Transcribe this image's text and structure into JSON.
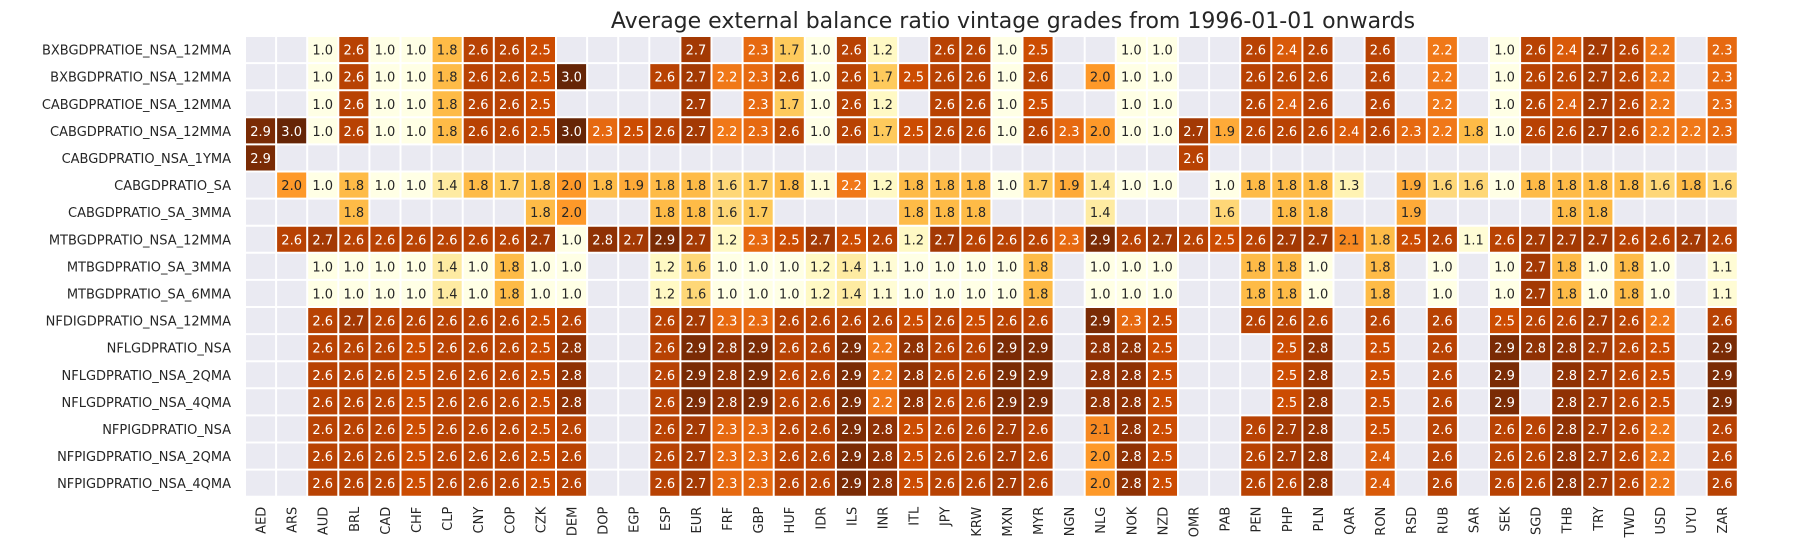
{
  "chart_data": {
    "type": "heatmap",
    "title": "Average external balance ratio vintage grades from 1996-01-01 onwards",
    "colormap": "YlOrBr",
    "vmin": 1.0,
    "vmax": 3.0,
    "background_color": "#eaeaf2",
    "columns": [
      "AED",
      "ARS",
      "AUD",
      "BRL",
      "CAD",
      "CHF",
      "CLP",
      "CNY",
      "COP",
      "CZK",
      "DEM",
      "DOP",
      "EGP",
      "ESP",
      "EUR",
      "FRF",
      "GBP",
      "HUF",
      "IDR",
      "ILS",
      "INR",
      "ITL",
      "JPY",
      "KRW",
      "MXN",
      "MYR",
      "NGN",
      "NLG",
      "NOK",
      "NZD",
      "OMR",
      "PAB",
      "PEN",
      "PHP",
      "PLN",
      "QAR",
      "RON",
      "RSD",
      "RUB",
      "SAR",
      "SEK",
      "SGD",
      "THB",
      "TRY",
      "TWD",
      "USD",
      "UYU",
      "ZAR"
    ],
    "rows": [
      "BXBGDPRATIOE_NSA_12MMA",
      "BXBGDPRATIO_NSA_12MMA",
      "CABGDPRATIOE_NSA_12MMA",
      "CABGDPRATIO_NSA_12MMA",
      "CABGDPRATIO_NSA_1YMA",
      "CABGDPRATIO_SA",
      "CABGDPRATIO_SA_3MMA",
      "MTBGDPRATIO_NSA_12MMA",
      "MTBGDPRATIO_SA_3MMA",
      "MTBGDPRATIO_SA_6MMA",
      "NFDIGDPRATIO_NSA_12MMA",
      "NFLGDPRATIO_NSA",
      "NFLGDPRATIO_NSA_2QMA",
      "NFLGDPRATIO_NSA_4QMA",
      "NFPIGDPRATIO_NSA",
      "NFPIGDPRATIO_NSA_2QMA",
      "NFPIGDPRATIO_NSA_4QMA"
    ],
    "values": [
      [
        null,
        null,
        1.0,
        2.6,
        1.0,
        1.0,
        1.8,
        2.6,
        2.6,
        2.5,
        null,
        null,
        null,
        null,
        2.7,
        null,
        2.3,
        1.7,
        1.0,
        2.6,
        1.2,
        null,
        2.6,
        2.6,
        1.0,
        2.5,
        null,
        null,
        1.0,
        1.0,
        null,
        null,
        2.6,
        2.4,
        2.6,
        null,
        2.6,
        null,
        2.2,
        null,
        1.0,
        2.6,
        2.4,
        2.7,
        2.6,
        2.2,
        null,
        2.3
      ],
      [
        null,
        null,
        1.0,
        2.6,
        1.0,
        1.0,
        1.8,
        2.6,
        2.6,
        2.5,
        3.0,
        null,
        null,
        2.6,
        2.7,
        2.2,
        2.3,
        2.6,
        1.0,
        2.6,
        1.7,
        2.5,
        2.6,
        2.6,
        1.0,
        2.6,
        null,
        2.0,
        1.0,
        1.0,
        null,
        null,
        2.6,
        2.6,
        2.6,
        null,
        2.6,
        null,
        2.2,
        null,
        1.0,
        2.6,
        2.6,
        2.7,
        2.6,
        2.2,
        null,
        2.3
      ],
      [
        null,
        null,
        1.0,
        2.6,
        1.0,
        1.0,
        1.8,
        2.6,
        2.6,
        2.5,
        null,
        null,
        null,
        null,
        2.7,
        null,
        2.3,
        1.7,
        1.0,
        2.6,
        1.2,
        null,
        2.6,
        2.6,
        1.0,
        2.5,
        null,
        null,
        1.0,
        1.0,
        null,
        null,
        2.6,
        2.4,
        2.6,
        null,
        2.6,
        null,
        2.2,
        null,
        1.0,
        2.6,
        2.4,
        2.7,
        2.6,
        2.2,
        null,
        2.3
      ],
      [
        2.9,
        3.0,
        1.0,
        2.6,
        1.0,
        1.0,
        1.8,
        2.6,
        2.6,
        2.5,
        3.0,
        2.3,
        2.5,
        2.6,
        2.7,
        2.2,
        2.3,
        2.6,
        1.0,
        2.6,
        1.7,
        2.5,
        2.6,
        2.6,
        1.0,
        2.6,
        2.3,
        2.0,
        1.0,
        1.0,
        2.7,
        1.9,
        2.6,
        2.6,
        2.6,
        2.4,
        2.6,
        2.3,
        2.2,
        1.8,
        1.0,
        2.6,
        2.6,
        2.7,
        2.6,
        2.2,
        2.2,
        2.3
      ],
      [
        2.9,
        null,
        null,
        null,
        null,
        null,
        null,
        null,
        null,
        null,
        null,
        null,
        null,
        null,
        null,
        null,
        null,
        null,
        null,
        null,
        null,
        null,
        null,
        null,
        null,
        null,
        null,
        null,
        null,
        null,
        2.6,
        null,
        null,
        null,
        null,
        null,
        null,
        null,
        null,
        null,
        null,
        null,
        null,
        null,
        null,
        null,
        null,
        null
      ],
      [
        null,
        2.0,
        1.0,
        1.8,
        1.0,
        1.0,
        1.4,
        1.8,
        1.7,
        1.8,
        2.0,
        1.8,
        1.9,
        1.8,
        1.8,
        1.6,
        1.7,
        1.8,
        1.1,
        2.2,
        1.2,
        1.8,
        1.8,
        1.8,
        1.0,
        1.7,
        1.9,
        1.4,
        1.0,
        1.0,
        null,
        1.0,
        1.8,
        1.8,
        1.8,
        1.3,
        null,
        1.9,
        1.6,
        1.6,
        1.0,
        1.8,
        1.8,
        1.8,
        1.8,
        1.6,
        1.8,
        1.6
      ],
      [
        null,
        null,
        null,
        1.8,
        null,
        null,
        null,
        null,
        null,
        1.8,
        2.0,
        null,
        null,
        1.8,
        1.8,
        1.6,
        1.7,
        null,
        null,
        null,
        null,
        1.8,
        1.8,
        1.8,
        null,
        null,
        null,
        1.4,
        null,
        null,
        null,
        1.6,
        null,
        1.8,
        1.8,
        null,
        null,
        1.9,
        null,
        null,
        null,
        null,
        1.8,
        1.8,
        null,
        null,
        null,
        null
      ],
      [
        null,
        2.6,
        2.7,
        2.6,
        2.6,
        2.6,
        2.6,
        2.6,
        2.6,
        2.7,
        1.0,
        2.8,
        2.7,
        2.9,
        2.7,
        1.2,
        2.3,
        2.5,
        2.7,
        2.5,
        2.6,
        1.2,
        2.7,
        2.6,
        2.6,
        2.6,
        2.3,
        2.9,
        2.6,
        2.7,
        2.6,
        2.5,
        2.6,
        2.7,
        2.7,
        2.1,
        1.8,
        2.5,
        2.6,
        1.1,
        2.6,
        2.7,
        2.7,
        2.7,
        2.6,
        2.6,
        2.7,
        2.6
      ],
      [
        null,
        null,
        1.0,
        1.0,
        1.0,
        1.0,
        1.4,
        1.0,
        1.8,
        1.0,
        1.0,
        null,
        null,
        1.2,
        1.6,
        1.0,
        1.0,
        1.0,
        1.2,
        1.4,
        1.1,
        1.0,
        1.0,
        1.0,
        1.0,
        1.8,
        null,
        1.0,
        1.0,
        1.0,
        null,
        null,
        1.8,
        1.8,
        1.0,
        null,
        1.8,
        null,
        1.0,
        null,
        1.0,
        2.7,
        1.8,
        1.0,
        1.8,
        1.0,
        null,
        1.1
      ],
      [
        null,
        null,
        1.0,
        1.0,
        1.0,
        1.0,
        1.4,
        1.0,
        1.8,
        1.0,
        1.0,
        null,
        null,
        1.2,
        1.6,
        1.0,
        1.0,
        1.0,
        1.2,
        1.4,
        1.1,
        1.0,
        1.0,
        1.0,
        1.0,
        1.8,
        null,
        1.0,
        1.0,
        1.0,
        null,
        null,
        1.8,
        1.8,
        1.0,
        null,
        1.8,
        null,
        1.0,
        null,
        1.0,
        2.7,
        1.8,
        1.0,
        1.8,
        1.0,
        null,
        1.1
      ],
      [
        null,
        null,
        2.6,
        2.7,
        2.6,
        2.6,
        2.6,
        2.6,
        2.6,
        2.5,
        2.6,
        null,
        null,
        2.6,
        2.7,
        2.3,
        2.3,
        2.6,
        2.6,
        2.6,
        2.6,
        2.5,
        2.6,
        2.5,
        2.6,
        2.6,
        null,
        2.9,
        2.3,
        2.5,
        null,
        null,
        2.6,
        2.6,
        2.6,
        null,
        2.6,
        null,
        2.6,
        null,
        2.5,
        2.6,
        2.6,
        2.7,
        2.6,
        2.2,
        null,
        2.6
      ],
      [
        null,
        null,
        2.6,
        2.6,
        2.6,
        2.5,
        2.6,
        2.6,
        2.6,
        2.5,
        2.8,
        null,
        null,
        2.6,
        2.9,
        2.8,
        2.9,
        2.6,
        2.6,
        2.9,
        2.2,
        2.8,
        2.6,
        2.6,
        2.9,
        2.9,
        null,
        2.8,
        2.8,
        2.5,
        null,
        null,
        null,
        2.5,
        2.8,
        null,
        2.5,
        null,
        2.6,
        null,
        2.9,
        2.8,
        2.8,
        2.7,
        2.6,
        2.5,
        null,
        2.9
      ],
      [
        null,
        null,
        2.6,
        2.6,
        2.6,
        2.5,
        2.6,
        2.6,
        2.6,
        2.5,
        2.8,
        null,
        null,
        2.6,
        2.9,
        2.8,
        2.9,
        2.6,
        2.6,
        2.9,
        2.2,
        2.8,
        2.6,
        2.6,
        2.9,
        2.9,
        null,
        2.8,
        2.8,
        2.5,
        null,
        null,
        null,
        2.5,
        2.8,
        null,
        2.5,
        null,
        2.6,
        null,
        2.9,
        null,
        2.8,
        2.7,
        2.6,
        2.5,
        null,
        2.9
      ],
      [
        null,
        null,
        2.6,
        2.6,
        2.6,
        2.5,
        2.6,
        2.6,
        2.6,
        2.5,
        2.8,
        null,
        null,
        2.6,
        2.9,
        2.8,
        2.9,
        2.6,
        2.6,
        2.9,
        2.2,
        2.8,
        2.6,
        2.6,
        2.9,
        2.9,
        null,
        2.8,
        2.8,
        2.5,
        null,
        null,
        null,
        2.5,
        2.8,
        null,
        2.5,
        null,
        2.6,
        null,
        2.9,
        null,
        2.8,
        2.7,
        2.6,
        2.5,
        null,
        2.9
      ],
      [
        null,
        null,
        2.6,
        2.6,
        2.6,
        2.5,
        2.6,
        2.6,
        2.6,
        2.5,
        2.6,
        null,
        null,
        2.6,
        2.7,
        2.3,
        2.3,
        2.6,
        2.6,
        2.9,
        2.8,
        2.5,
        2.6,
        2.6,
        2.7,
        2.6,
        null,
        2.1,
        2.8,
        2.5,
        null,
        null,
        2.6,
        2.7,
        2.8,
        null,
        2.5,
        null,
        2.6,
        null,
        2.6,
        2.6,
        2.8,
        2.7,
        2.6,
        2.2,
        null,
        2.6
      ],
      [
        null,
        null,
        2.6,
        2.6,
        2.6,
        2.5,
        2.6,
        2.6,
        2.6,
        2.5,
        2.6,
        null,
        null,
        2.6,
        2.7,
        2.3,
        2.3,
        2.6,
        2.6,
        2.9,
        2.8,
        2.5,
        2.6,
        2.6,
        2.7,
        2.6,
        null,
        2.0,
        2.8,
        2.5,
        null,
        null,
        2.6,
        2.7,
        2.8,
        null,
        2.4,
        null,
        2.6,
        null,
        2.6,
        2.6,
        2.8,
        2.7,
        2.6,
        2.2,
        null,
        2.6
      ],
      [
        null,
        null,
        2.6,
        2.6,
        2.6,
        2.5,
        2.6,
        2.6,
        2.6,
        2.5,
        2.6,
        null,
        null,
        2.6,
        2.7,
        2.3,
        2.3,
        2.6,
        2.6,
        2.9,
        2.8,
        2.5,
        2.6,
        2.6,
        2.7,
        2.6,
        null,
        2.0,
        2.8,
        2.5,
        null,
        null,
        2.6,
        2.6,
        2.8,
        null,
        2.4,
        null,
        2.6,
        null,
        2.6,
        2.6,
        2.8,
        2.7,
        2.6,
        2.2,
        null,
        2.6
      ]
    ]
  }
}
